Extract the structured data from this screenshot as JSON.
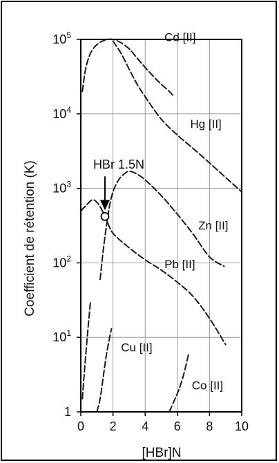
{
  "chart_data": {
    "type": "line",
    "xlabel": "[HBr]N",
    "ylabel": "Coefficient de rétention (K)",
    "xlim": [
      0,
      10
    ],
    "ylim": [
      1,
      100000
    ],
    "yscale": "log",
    "grid": true,
    "x_ticks": [
      "0",
      "2",
      "4",
      "6",
      "8",
      "10"
    ],
    "x_tick_values": [
      0,
      2,
      4,
      6,
      8,
      10
    ],
    "y_ticks": [
      {
        "value": 1,
        "base": "1",
        "exp": ""
      },
      {
        "value": 10,
        "base": "10",
        "exp": "1"
      },
      {
        "value": 100,
        "base": "10",
        "exp": "2"
      },
      {
        "value": 1000,
        "base": "10",
        "exp": "3"
      },
      {
        "value": 10000,
        "base": "10",
        "exp": "4"
      },
      {
        "value": 100000,
        "base": "10",
        "exp": "5"
      }
    ],
    "series": [
      {
        "name": "Cd [II]",
        "x": [
          0.1,
          0.3,
          0.6,
          1.0,
          1.5,
          2.0,
          2.5,
          3.0,
          3.5,
          4.0,
          4.5,
          5.0,
          5.5,
          5.8
        ],
        "y": [
          20000,
          40000,
          65000,
          85000,
          98000,
          100000,
          90000,
          75000,
          56000,
          42000,
          32000,
          25000,
          20000,
          17000
        ]
      },
      {
        "name": "Hg [II]",
        "x": [
          2.0,
          2.5,
          3.0,
          3.5,
          4.0,
          5.0,
          6.0,
          7.0,
          8.0,
          9.0,
          10.0
        ],
        "y": [
          95000,
          65000,
          40000,
          25000,
          17000,
          8500,
          5200,
          3400,
          2200,
          1400,
          900
        ]
      },
      {
        "name": "Zn [II]",
        "x": [
          1.2,
          1.4,
          1.6,
          1.8,
          2.0,
          2.3,
          2.6,
          3.0,
          3.5,
          4.0,
          5.0,
          6.0,
          7.0,
          8.0,
          8.9
        ],
        "y": [
          60,
          150,
          320,
          600,
          900,
          1250,
          1500,
          1700,
          1550,
          1300,
          800,
          450,
          240,
          120,
          90
        ]
      },
      {
        "name": "Pb [II]",
        "x": [
          0.0,
          0.3,
          0.7,
          1.0,
          1.3,
          1.6,
          2.0,
          3.0,
          4.0,
          5.0,
          6.0,
          7.0,
          8.0,
          9.0
        ],
        "y": [
          500,
          580,
          700,
          650,
          520,
          380,
          250,
          160,
          110,
          80,
          55,
          35,
          18,
          8
        ]
      },
      {
        "name": "Cu [II]",
        "x": [
          0.1,
          0.2,
          0.4,
          0.6
        ],
        "y": [
          1.5,
          3,
          10,
          30
        ]
      },
      {
        "name": "Cu [II]",
        "x": [
          1.0,
          1.2,
          1.4,
          1.6,
          1.9
        ],
        "y": [
          1,
          1.5,
          3,
          6,
          13
        ]
      },
      {
        "name": "Co [II]",
        "x": [
          5.5,
          5.8,
          6.1,
          6.4,
          6.7
        ],
        "y": [
          1,
          1.4,
          2,
          3.2,
          6
        ]
      }
    ],
    "series_labels": [
      {
        "text": "Cd [II]",
        "x": 5.2,
        "y": 95000
      },
      {
        "text": "Hg [II]",
        "x": 6.8,
        "y": 6500
      },
      {
        "text": "Zn [II]",
        "x": 7.3,
        "y": 280
      },
      {
        "text": "Pb [II]",
        "x": 5.2,
        "y": 85
      },
      {
        "text": "Cu [II]",
        "x": 2.5,
        "y": 6.5
      },
      {
        "text": "Co [II]",
        "x": 6.9,
        "y": 2
      }
    ],
    "annotations": [
      {
        "text": "HBr 1.5N",
        "x": 1.5,
        "y": 420,
        "marker": "open-circle",
        "arrow": "down"
      }
    ]
  }
}
